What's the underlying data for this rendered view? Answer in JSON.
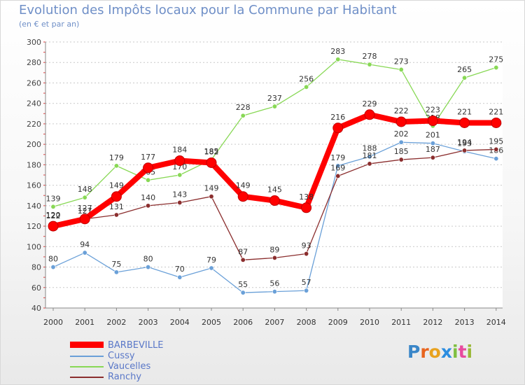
{
  "title": "Evolution des Impôts locaux pour la Commune par Habitant",
  "subtitle": "(en € et par an)",
  "logo": {
    "text": "Proxiti",
    "letters": [
      {
        "ch": "P",
        "color": "#3a86c8"
      },
      {
        "ch": "r",
        "color": "#e8641e"
      },
      {
        "ch": "o",
        "color": "#e8a21e"
      },
      {
        "ch": "x",
        "color": "#2b8de0"
      },
      {
        "ch": "i",
        "color": "#7fbf3f"
      },
      {
        "ch": "t",
        "color": "#e84a9e"
      },
      {
        "ch": "i",
        "color": "#9ab93a"
      }
    ]
  },
  "chart_data": {
    "type": "line",
    "title": "Evolution des Impôts locaux pour la Commune par Habitant",
    "subtitle": "(en € et par an)",
    "x": [
      "2000",
      "2001",
      "2002",
      "2003",
      "2004",
      "2005",
      "2006",
      "2007",
      "2008",
      "2009",
      "2010",
      "2011",
      "2012",
      "2013",
      "2014"
    ],
    "ylim": [
      40,
      300
    ],
    "yticks": [
      40,
      60,
      80,
      100,
      120,
      140,
      160,
      180,
      200,
      220,
      240,
      260,
      280,
      300
    ],
    "grid": "y-dashed",
    "legend_position": "bottom-left",
    "series": [
      {
        "name": "BARBEVILLE",
        "color": "#ff0000",
        "values": [
          120,
          127,
          149,
          177,
          184,
          182,
          149,
          145,
          138,
          216,
          229,
          222,
          223,
          221,
          221
        ]
      },
      {
        "name": "Cussy",
        "color": "#6aa0d8",
        "values": [
          80,
          94,
          75,
          80,
          70,
          79,
          55,
          56,
          57,
          179,
          188,
          202,
          201,
          193,
          186
        ]
      },
      {
        "name": "Vaucelles",
        "color": "#88d855",
        "values": [
          139,
          148,
          179,
          165,
          170,
          185,
          228,
          237,
          256,
          283,
          278,
          273,
          218,
          265,
          275
        ]
      },
      {
        "name": "Ranchy",
        "color": "#8b2e2e",
        "values": [
          122,
          127,
          131,
          140,
          143,
          149,
          87,
          89,
          93,
          169,
          181,
          185,
          187,
          194,
          195
        ]
      }
    ]
  }
}
